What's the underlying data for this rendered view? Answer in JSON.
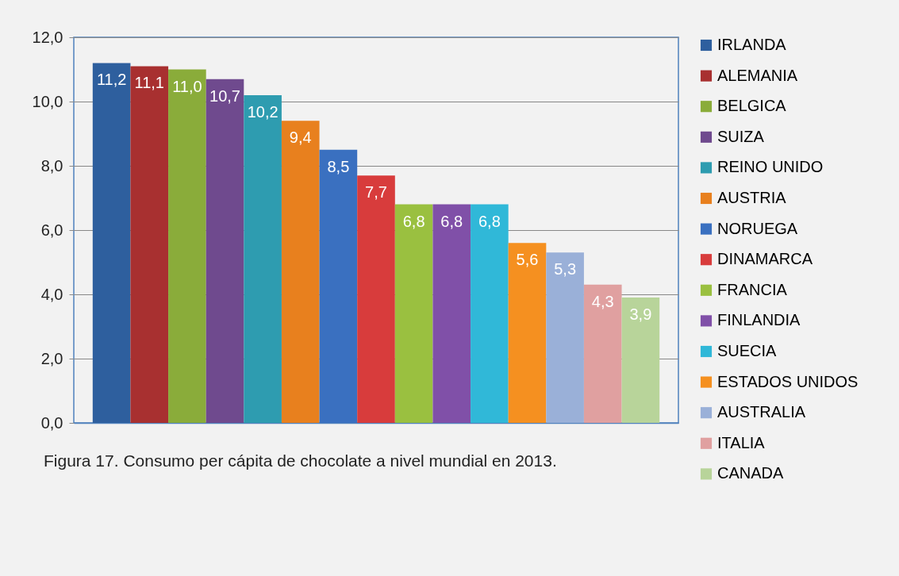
{
  "chart_data": {
    "type": "bar",
    "categories": [
      null,
      null,
      null,
      null,
      null,
      null,
      null,
      null,
      null,
      null,
      null,
      null,
      null,
      null,
      null
    ],
    "series": [
      {
        "name": "IRLANDA",
        "color": "#2e5f9e",
        "values": [
          11.2,
          null,
          null,
          null,
          null,
          null,
          null,
          null,
          null,
          null,
          null,
          null,
          null,
          null,
          null
        ],
        "value_labels": [
          "11,2",
          null,
          null,
          null,
          null,
          null,
          null,
          null,
          null,
          null,
          null,
          null,
          null,
          null,
          null
        ]
      },
      {
        "name": "ALEMANIA",
        "color": "#a83030",
        "values": [
          null,
          11.1,
          null,
          null,
          null,
          null,
          null,
          null,
          null,
          null,
          null,
          null,
          null,
          null,
          null
        ],
        "value_labels": [
          null,
          "11,1",
          null,
          null,
          null,
          null,
          null,
          null,
          null,
          null,
          null,
          null,
          null,
          null,
          null
        ]
      },
      {
        "name": "BELGICA",
        "color": "#8aac3a",
        "values": [
          null,
          null,
          11.0,
          null,
          null,
          null,
          null,
          null,
          null,
          null,
          null,
          null,
          null,
          null,
          null
        ],
        "value_labels": [
          null,
          null,
          "11,0",
          null,
          null,
          null,
          null,
          null,
          null,
          null,
          null,
          null,
          null,
          null,
          null
        ]
      },
      {
        "name": "SUIZA",
        "color": "#6f4a8e",
        "values": [
          null,
          null,
          null,
          10.7,
          null,
          null,
          null,
          null,
          null,
          null,
          null,
          null,
          null,
          null,
          null
        ],
        "value_labels": [
          null,
          null,
          null,
          "10,7",
          null,
          null,
          null,
          null,
          null,
          null,
          null,
          null,
          null,
          null,
          null
        ]
      },
      {
        "name": "REINO UNIDO",
        "color": "#2e9cb0",
        "values": [
          null,
          null,
          null,
          null,
          10.2,
          null,
          null,
          null,
          null,
          null,
          null,
          null,
          null,
          null,
          null
        ],
        "value_labels": [
          null,
          null,
          null,
          null,
          "10,2",
          null,
          null,
          null,
          null,
          null,
          null,
          null,
          null,
          null,
          null
        ]
      },
      {
        "name": "AUSTRIA",
        "color": "#e8801e",
        "values": [
          null,
          null,
          null,
          null,
          null,
          9.4,
          null,
          null,
          null,
          null,
          null,
          null,
          null,
          null,
          null
        ],
        "value_labels": [
          null,
          null,
          null,
          null,
          null,
          "9,4",
          null,
          null,
          null,
          null,
          null,
          null,
          null,
          null,
          null
        ]
      },
      {
        "name": "NORUEGA",
        "color": "#3a70c0",
        "values": [
          null,
          null,
          null,
          null,
          null,
          null,
          8.5,
          null,
          null,
          null,
          null,
          null,
          null,
          null,
          null
        ],
        "value_labels": [
          null,
          null,
          null,
          null,
          null,
          null,
          "8,5",
          null,
          null,
          null,
          null,
          null,
          null,
          null,
          null
        ]
      },
      {
        "name": "DINAMARCA",
        "color": "#d83c3c",
        "values": [
          null,
          null,
          null,
          null,
          null,
          null,
          null,
          7.7,
          null,
          null,
          null,
          null,
          null,
          null,
          null
        ],
        "value_labels": [
          null,
          null,
          null,
          null,
          null,
          null,
          null,
          "7,7",
          null,
          null,
          null,
          null,
          null,
          null,
          null
        ]
      },
      {
        "name": "FRANCIA",
        "color": "#9ac040",
        "values": [
          null,
          null,
          null,
          null,
          null,
          null,
          null,
          null,
          6.8,
          null,
          null,
          null,
          null,
          null,
          null
        ],
        "value_labels": [
          null,
          null,
          null,
          null,
          null,
          null,
          null,
          null,
          "6,8",
          null,
          null,
          null,
          null,
          null,
          null
        ]
      },
      {
        "name": "FINLANDIA",
        "color": "#8050a8",
        "values": [
          null,
          null,
          null,
          null,
          null,
          null,
          null,
          null,
          null,
          6.8,
          null,
          null,
          null,
          null,
          null
        ],
        "value_labels": [
          null,
          null,
          null,
          null,
          null,
          null,
          null,
          null,
          null,
          "6,8",
          null,
          null,
          null,
          null,
          null
        ]
      },
      {
        "name": "SUECIA",
        "color": "#30b8d8",
        "values": [
          null,
          null,
          null,
          null,
          null,
          null,
          null,
          null,
          null,
          null,
          6.8,
          null,
          null,
          null,
          null
        ],
        "value_labels": [
          null,
          null,
          null,
          null,
          null,
          null,
          null,
          null,
          null,
          null,
          "6,8",
          null,
          null,
          null,
          null
        ]
      },
      {
        "name": "ESTADOS UNIDOS",
        "color": "#f59020",
        "values": [
          null,
          null,
          null,
          null,
          null,
          null,
          null,
          null,
          null,
          null,
          null,
          5.6,
          null,
          null,
          null
        ],
        "value_labels": [
          null,
          null,
          null,
          null,
          null,
          null,
          null,
          null,
          null,
          null,
          null,
          "5,6",
          null,
          null,
          null
        ]
      },
      {
        "name": "AUSTRALIA",
        "color": "#9ab0d8",
        "values": [
          null,
          null,
          null,
          null,
          null,
          null,
          null,
          null,
          null,
          null,
          null,
          null,
          5.3,
          null,
          null
        ],
        "value_labels": [
          null,
          null,
          null,
          null,
          null,
          null,
          null,
          null,
          null,
          null,
          null,
          null,
          "5,3",
          null,
          null
        ]
      },
      {
        "name": "ITALIA",
        "color": "#e0a0a0",
        "values": [
          null,
          null,
          null,
          null,
          null,
          null,
          null,
          null,
          null,
          null,
          null,
          null,
          null,
          4.3,
          null
        ],
        "value_labels": [
          null,
          null,
          null,
          null,
          null,
          null,
          null,
          null,
          null,
          null,
          null,
          null,
          null,
          "4,3",
          null
        ]
      },
      {
        "name": "CANADA",
        "color": "#b8d49a",
        "values": [
          null,
          null,
          null,
          null,
          null,
          null,
          null,
          null,
          null,
          null,
          null,
          null,
          null,
          null,
          3.9
        ],
        "value_labels": [
          null,
          null,
          null,
          null,
          null,
          null,
          null,
          null,
          null,
          null,
          null,
          null,
          null,
          null,
          "3,9"
        ]
      }
    ],
    "ylim": [
      0,
      12
    ],
    "yticks": [
      {
        "value": 0,
        "label": "0,0"
      },
      {
        "value": 2,
        "label": "2,0"
      },
      {
        "value": 4,
        "label": "4,0"
      },
      {
        "value": 6,
        "label": "6,0"
      },
      {
        "value": 8,
        "label": "8,0"
      },
      {
        "value": 10,
        "label": "10,0"
      },
      {
        "value": 12,
        "label": "12,0"
      }
    ],
    "grid": "y",
    "legend": "right",
    "annotations": [
      "Figura 17. Consumo per cápita de chocolate a nivel mundial en 2013."
    ]
  }
}
